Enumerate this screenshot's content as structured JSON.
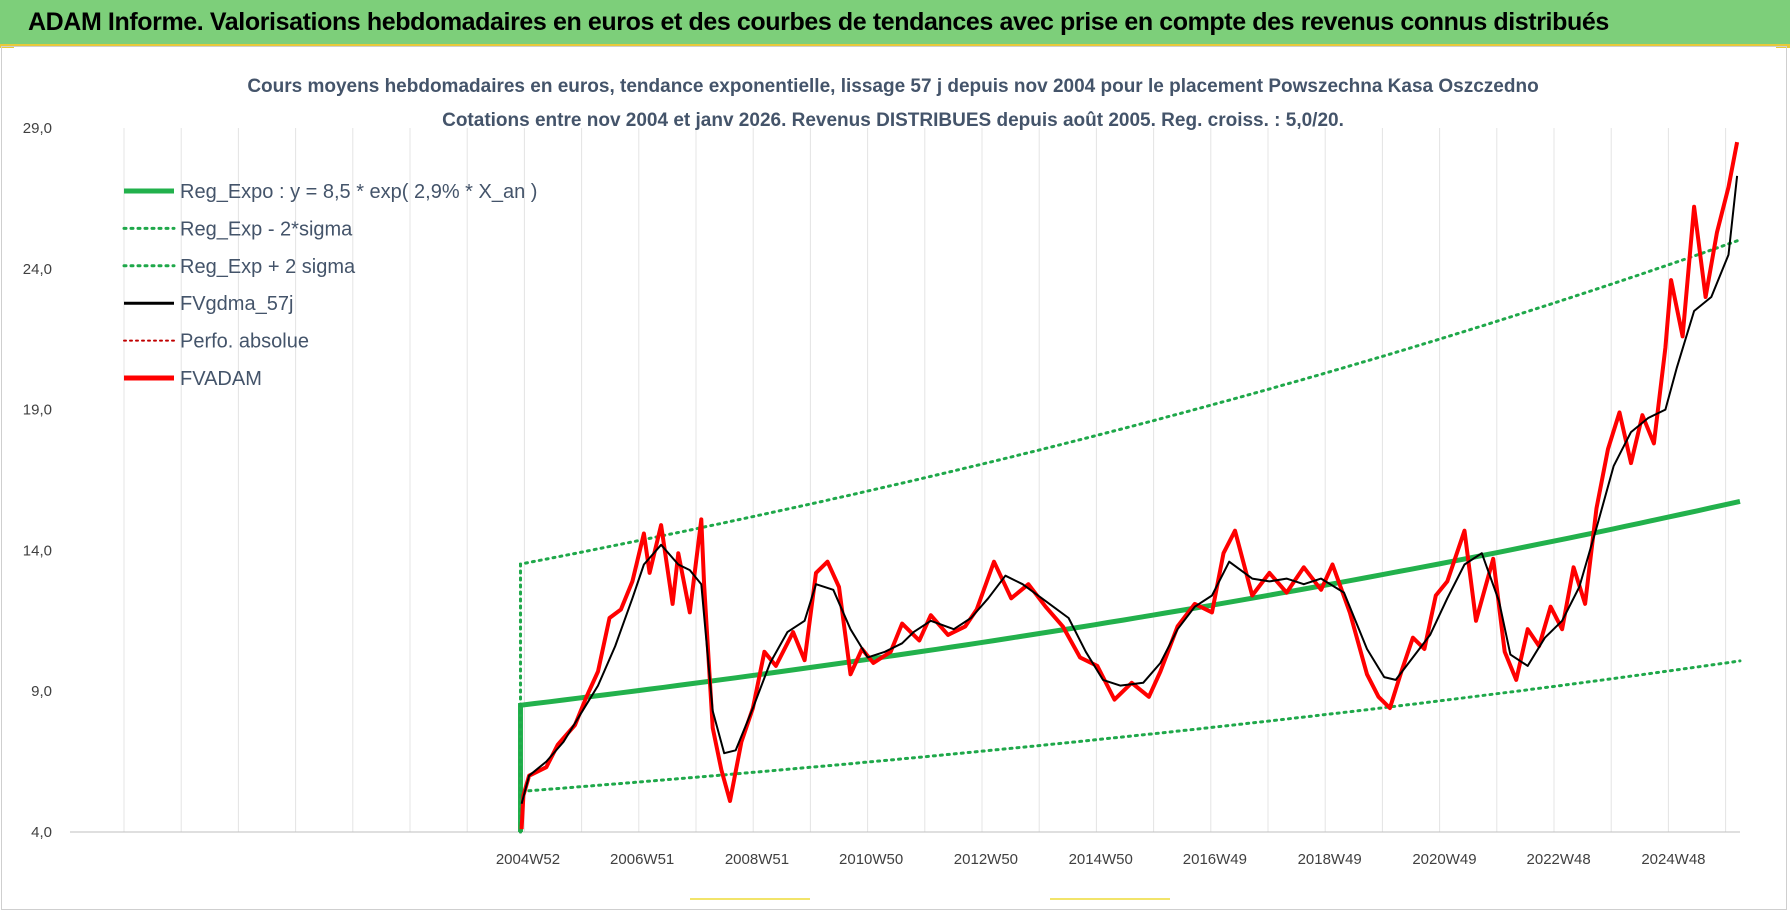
{
  "banner": {
    "title": "ADAM Informe. Valorisations hebdomadaires en euros et des courbes de tendances avec prise en compte des revenus connus distribués"
  },
  "colors": {
    "banner_bg": "#7dcf7a",
    "reg_expo": "#22b14c",
    "sigma": "#1fa84a",
    "fvgdma": "#000000",
    "perfo": "#c00000",
    "fvadam": "#ff0000"
  },
  "chart_data": {
    "type": "line",
    "title": "Cours moyens hebdomadaires en euros, tendance exponentielle, lissage 57 j depuis nov 2004  pour le placement Powszechna Kasa Oszczedno",
    "subtitle": "Cotations entre nov 2004 et janv 2026. Revenus DISTRIBUES depuis août 2005. Reg. croiss. : 5,0/20.",
    "xlabel": "",
    "ylabel": "",
    "ylim": [
      4,
      29
    ],
    "yticks": [
      "29,0",
      "24,0",
      "19,0",
      "14,0",
      "9,0",
      "4,0"
    ],
    "yticks_values": [
      29,
      24,
      19,
      14,
      9,
      4
    ],
    "xlim": [
      1997.0,
      2026.1
    ],
    "xticks": [
      "2004W52",
      "2006W51",
      "2008W51",
      "2010W50",
      "2012W50",
      "2014W50",
      "2016W49",
      "2018W49",
      "2020W49",
      "2022W48",
      "2024W48"
    ],
    "xticks_values": [
      2004.98,
      2006.97,
      2008.97,
      2010.96,
      2012.96,
      2014.96,
      2016.95,
      2018.95,
      2020.95,
      2022.94,
      2024.94
    ],
    "grid": "vertical",
    "legend_position": "top-left",
    "regression": {
      "a": 8.5,
      "rate": 0.029,
      "start": 2004.85,
      "end": 2026.1,
      "minus2sigma_factor": 0.64,
      "plus2sigma_factor": 1.59
    },
    "series": [
      {
        "name": "Reg_Expo : y = 8,5 * exp( 2,9% *  X_an )",
        "style": "solid-thick",
        "color": "#22b14c"
      },
      {
        "name": "Reg_Exp - 2*sigma",
        "style": "dotted",
        "color": "#1fa84a"
      },
      {
        "name": "Reg_Exp + 2 sigma",
        "style": "dotted",
        "color": "#1fa84a"
      },
      {
        "name": "FVgdma_57j",
        "style": "solid",
        "color": "#000000",
        "x": [
          2004.87,
          2005.0,
          2005.3,
          2005.6,
          2005.9,
          2006.2,
          2006.5,
          2006.8,
          2007.0,
          2007.3,
          2007.6,
          2007.8,
          2008.0,
          2008.2,
          2008.4,
          2008.6,
          2008.9,
          2009.2,
          2009.5,
          2009.8,
          2010.0,
          2010.3,
          2010.6,
          2010.9,
          2011.2,
          2011.5,
          2011.7,
          2012.0,
          2012.4,
          2012.7,
          2013.0,
          2013.3,
          2013.6,
          2014.0,
          2014.4,
          2014.7,
          2015.0,
          2015.3,
          2015.7,
          2016.0,
          2016.3,
          2016.6,
          2016.9,
          2017.2,
          2017.6,
          2017.9,
          2018.2,
          2018.5,
          2018.8,
          2019.2,
          2019.6,
          2019.9,
          2020.1,
          2020.4,
          2020.7,
          2021.0,
          2021.3,
          2021.6,
          2021.9,
          2022.1,
          2022.4,
          2022.7,
          2023.0,
          2023.3,
          2023.6,
          2023.9,
          2024.2,
          2024.5,
          2024.8,
          2025.0,
          2025.3,
          2025.6,
          2025.9,
          2026.05
        ],
        "y": [
          5.0,
          6.0,
          6.5,
          7.2,
          8.2,
          9.2,
          10.6,
          12.3,
          13.5,
          14.2,
          13.5,
          13.3,
          12.8,
          8.3,
          6.8,
          6.9,
          8.4,
          10.0,
          11.1,
          11.5,
          12.8,
          12.6,
          11.2,
          10.2,
          10.4,
          10.7,
          11.1,
          11.5,
          11.2,
          11.6,
          12.3,
          13.1,
          12.8,
          12.2,
          11.6,
          10.4,
          9.4,
          9.2,
          9.3,
          10.0,
          11.2,
          12.0,
          12.4,
          13.6,
          13.0,
          12.9,
          13.0,
          12.8,
          13.0,
          12.5,
          10.5,
          9.5,
          9.4,
          10.2,
          11.0,
          12.3,
          13.5,
          13.9,
          12.2,
          10.3,
          9.9,
          10.9,
          11.5,
          12.7,
          14.8,
          17.0,
          18.2,
          18.7,
          19.0,
          20.5,
          22.5,
          23.0,
          24.5,
          27.3
        ]
      },
      {
        "name": "Perfo. absolue",
        "style": "dotted",
        "color": "#c00000"
      },
      {
        "name": "FVADAM",
        "style": "solid-thick",
        "color": "#ff0000",
        "x": [
          2004.87,
          2004.9,
          2005.0,
          2005.3,
          2005.5,
          2005.8,
          2006.0,
          2006.2,
          2006.4,
          2006.6,
          2006.8,
          2007.0,
          2007.1,
          2007.3,
          2007.5,
          2007.6,
          2007.8,
          2008.0,
          2008.05,
          2008.2,
          2008.35,
          2008.5,
          2008.7,
          2008.9,
          2009.1,
          2009.3,
          2009.6,
          2009.8,
          2010.0,
          2010.2,
          2010.4,
          2010.6,
          2010.8,
          2011.0,
          2011.3,
          2011.5,
          2011.8,
          2012.0,
          2012.3,
          2012.6,
          2012.8,
          2013.1,
          2013.4,
          2013.7,
          2014.0,
          2014.3,
          2014.6,
          2014.9,
          2015.2,
          2015.5,
          2015.8,
          2016.0,
          2016.3,
          2016.6,
          2016.9,
          2017.1,
          2017.3,
          2017.6,
          2017.9,
          2018.2,
          2018.5,
          2018.8,
          2019.0,
          2019.3,
          2019.6,
          2019.8,
          2020.0,
          2020.2,
          2020.4,
          2020.6,
          2020.8,
          2021.0,
          2021.3,
          2021.5,
          2021.8,
          2022.0,
          2022.2,
          2022.4,
          2022.6,
          2022.8,
          2023.0,
          2023.2,
          2023.4,
          2023.6,
          2023.8,
          2024.0,
          2024.2,
          2024.4,
          2024.6,
          2024.8,
          2024.9,
          2025.1,
          2025.3,
          2025.5,
          2025.7,
          2025.9,
          2026.05
        ],
        "y": [
          4.1,
          5.3,
          6.0,
          6.3,
          7.1,
          7.8,
          8.8,
          9.7,
          11.6,
          11.9,
          12.9,
          14.6,
          13.2,
          14.9,
          12.1,
          13.9,
          11.8,
          15.1,
          12.8,
          7.7,
          6.2,
          5.1,
          7.2,
          8.4,
          10.4,
          9.9,
          11.1,
          10.1,
          13.2,
          13.6,
          12.7,
          9.6,
          10.5,
          10.0,
          10.4,
          11.4,
          10.8,
          11.7,
          11.0,
          11.3,
          11.9,
          13.6,
          12.3,
          12.8,
          12.0,
          11.3,
          10.2,
          9.9,
          8.7,
          9.3,
          8.8,
          9.7,
          11.3,
          12.1,
          11.8,
          13.9,
          14.7,
          12.4,
          13.2,
          12.5,
          13.4,
          12.6,
          13.5,
          11.8,
          9.6,
          8.8,
          8.4,
          9.7,
          10.9,
          10.5,
          12.4,
          12.9,
          14.7,
          11.5,
          13.7,
          10.4,
          9.4,
          11.2,
          10.6,
          12.0,
          11.2,
          13.4,
          12.1,
          15.5,
          17.6,
          18.9,
          17.1,
          18.8,
          17.8,
          21.2,
          23.6,
          21.6,
          26.2,
          23.0,
          25.3,
          26.9,
          28.5
        ]
      }
    ]
  }
}
